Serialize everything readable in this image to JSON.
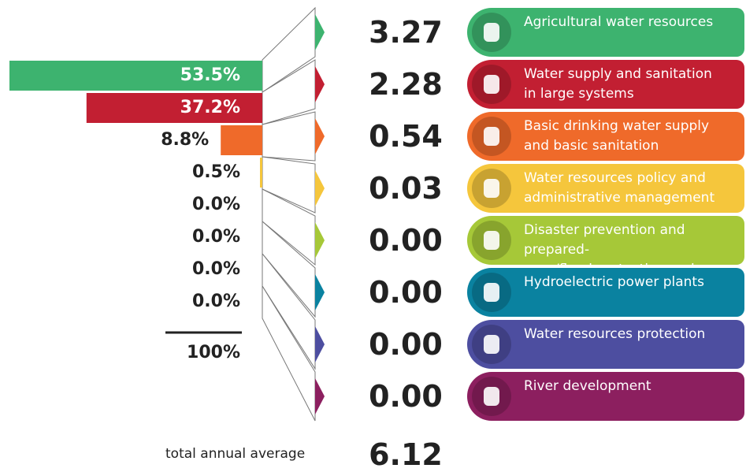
{
  "chart_data": {
    "type": "bar",
    "orientation": "horizontal",
    "categories": [
      "Agricultural water resources",
      "Water supply and sanitation\nin large systems",
      "Basic drinking water supply\nand basic sanitation",
      "Water resources policy and\nadministrative management",
      "Disaster prevention and prepared-\nness/flood protection and control",
      "Hydroelectric power plants",
      "Water resources protection",
      "River development"
    ],
    "colors": [
      "#3db36f",
      "#c21f32",
      "#ef6a2a",
      "#f5c63c",
      "#a6c838",
      "#0a82a0",
      "#4d4ea0",
      "#8c1f5f"
    ],
    "values": [
      53.5,
      37.2,
      8.8,
      0.5,
      0.0,
      0.0,
      0.0,
      0.0
    ],
    "value_labels": [
      "53.5%",
      "37.2%",
      "8.8%",
      "0.5%",
      "0.0%",
      "0.0%",
      "0.0%",
      "0.0%"
    ],
    "amounts": [
      3.27,
      2.28,
      0.54,
      0.03,
      0,
      0,
      0,
      0
    ],
    "amount_labels": [
      "3.27",
      "2.28",
      "0.54",
      "0.03",
      "0.00",
      "0.00",
      "0.00",
      "0.00"
    ],
    "total_percent": 100,
    "total_percent_label": "100%",
    "total_amount": 6.12,
    "total_caption": "total annual average"
  }
}
